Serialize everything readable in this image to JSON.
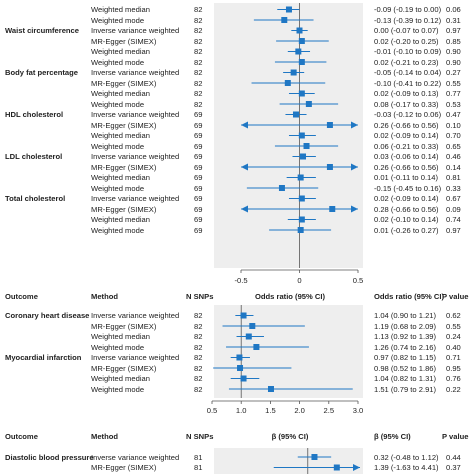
{
  "colors": {
    "accent": "#1f77c4",
    "shade": "#eeeeee",
    "axis": "#555555"
  },
  "panels": [
    {
      "axis": {
        "min": -0.5,
        "max": 0.5,
        "ref": 0,
        "ticks": [
          -0.5,
          0,
          0.5
        ],
        "tick_labels": [
          "-0.5",
          "0",
          "0.5"
        ]
      },
      "header": null,
      "groups": [
        {
          "outcome": "",
          "rows": [
            {
              "method": "Weighted median",
              "n": "82",
              "est": -0.09,
              "lo": -0.19,
              "hi": 0.0,
              "ci_text": "-0.09 (-0.19 to 0.00)",
              "p": "0.06"
            },
            {
              "method": "Weighted mode",
              "n": "82",
              "est": -0.13,
              "lo": -0.39,
              "hi": 0.12,
              "ci_text": "-0.13 (-0.39 to 0.12)",
              "p": "0.31"
            }
          ]
        },
        {
          "outcome": "Waist circumference",
          "rows": [
            {
              "method": "Inverse variance weighted",
              "n": "82",
              "est": 0.0,
              "lo": -0.07,
              "hi": 0.07,
              "ci_text": "0.00 (-0.07 to 0.07)",
              "p": "0.97"
            },
            {
              "method": "MR-Egger (SIMEX)",
              "n": "82",
              "est": 0.02,
              "lo": -0.2,
              "hi": 0.25,
              "ci_text": "0.02 (-0.20 to 0.25)",
              "p": "0.85"
            },
            {
              "method": "Weighted median",
              "n": "82",
              "est": -0.01,
              "lo": -0.1,
              "hi": 0.09,
              "ci_text": "-0.01 (-0.10 to 0.09)",
              "p": "0.90"
            },
            {
              "method": "Weighted mode",
              "n": "82",
              "est": 0.02,
              "lo": -0.21,
              "hi": 0.23,
              "ci_text": "0.02 (-0.21 to 0.23)",
              "p": "0.90"
            }
          ]
        },
        {
          "outcome": "Body fat percentage",
          "rows": [
            {
              "method": "Inverse variance weighted",
              "n": "82",
              "est": -0.05,
              "lo": -0.14,
              "hi": 0.04,
              "ci_text": "-0.05 (-0.14 to 0.04)",
              "p": "0.27"
            },
            {
              "method": "MR-Egger (SIMEX)",
              "n": "82",
              "est": -0.1,
              "lo": -0.41,
              "hi": 0.22,
              "ci_text": "-0.10 (-0.41 to 0.22)",
              "p": "0.55"
            },
            {
              "method": "Weighted median",
              "n": "82",
              "est": 0.02,
              "lo": -0.09,
              "hi": 0.13,
              "ci_text": "0.02 (-0.09 to 0.13)",
              "p": "0.77"
            },
            {
              "method": "Weighted mode",
              "n": "82",
              "est": 0.08,
              "lo": -0.17,
              "hi": 0.33,
              "ci_text": "0.08 (-0.17 to 0.33)",
              "p": "0.53"
            }
          ]
        },
        {
          "outcome": "HDL cholesterol",
          "rows": [
            {
              "method": "Inverse variance weighted",
              "n": "69",
              "est": -0.03,
              "lo": -0.12,
              "hi": 0.06,
              "ci_text": "-0.03 (-0.12 to 0.06)",
              "p": "0.47"
            },
            {
              "method": "MR-Egger (SIMEX)",
              "n": "69",
              "est": 0.26,
              "lo": -0.66,
              "hi": 0.56,
              "ci_text": "0.26 (-0.66 to 0.56)",
              "p": "0.10",
              "arrow_left": true,
              "arrow_right": true
            },
            {
              "method": "Weighted median",
              "n": "69",
              "est": 0.02,
              "lo": -0.09,
              "hi": 0.14,
              "ci_text": "0.02 (-0.09 to 0.14)",
              "p": "0.70"
            },
            {
              "method": "Weighted mode",
              "n": "69",
              "est": 0.06,
              "lo": -0.21,
              "hi": 0.33,
              "ci_text": "0.06 (-0.21 to 0.33)",
              "p": "0.65"
            }
          ]
        },
        {
          "outcome": "LDL cholesterol",
          "rows": [
            {
              "method": "Inverse variance weighted",
              "n": "69",
              "est": 0.03,
              "lo": -0.06,
              "hi": 0.14,
              "ci_text": "0.03 (-0.06 to 0.14)",
              "p": "0.46"
            },
            {
              "method": "MR-Egger (SIMEX)",
              "n": "69",
              "est": 0.26,
              "lo": -0.66,
              "hi": 0.56,
              "ci_text": "0.26 (-0.66 to 0.56)",
              "p": "0.14",
              "arrow_left": true,
              "arrow_right": true
            },
            {
              "method": "Weighted median",
              "n": "69",
              "est": 0.01,
              "lo": -0.11,
              "hi": 0.14,
              "ci_text": "0.01 (-0.11 to 0.14)",
              "p": "0.81"
            },
            {
              "method": "Weighted mode",
              "n": "69",
              "est": -0.15,
              "lo": -0.45,
              "hi": 0.16,
              "ci_text": "-0.15 (-0.45 to 0.16)",
              "p": "0.33"
            }
          ]
        },
        {
          "outcome": "Total cholesterol",
          "rows": [
            {
              "method": "Inverse variance weighted",
              "n": "69",
              "est": 0.02,
              "lo": -0.09,
              "hi": 0.14,
              "ci_text": "0.02 (-0.09 to 0.14)",
              "p": "0.67"
            },
            {
              "method": "MR-Egger (SIMEX)",
              "n": "69",
              "est": 0.28,
              "lo": -0.66,
              "hi": 0.56,
              "ci_text": "0.28 (-0.66 to 0.56)",
              "p": "0.09",
              "arrow_left": true,
              "arrow_right": true
            },
            {
              "method": "Weighted median",
              "n": "69",
              "est": 0.02,
              "lo": -0.1,
              "hi": 0.14,
              "ci_text": "0.02 (-0.10 to 0.14)",
              "p": "0.74"
            },
            {
              "method": "Weighted mode",
              "n": "69",
              "est": 0.01,
              "lo": -0.26,
              "hi": 0.27,
              "ci_text": "0.01 (-0.26 to 0.27)",
              "p": "0.97"
            }
          ]
        }
      ]
    },
    {
      "axis": {
        "min": 0.5,
        "max": 3.0,
        "ref": 1,
        "ticks": [
          0.5,
          1.0,
          1.5,
          2.0,
          2.5,
          3.0
        ],
        "tick_labels": [
          "0.5",
          "1.0",
          "1.5",
          "2.0",
          "2.5",
          "3.0"
        ]
      },
      "header": {
        "outcome": "Outcome",
        "method": "Method",
        "n": "N SNPs",
        "mid": "Odds ratio (95% CI)",
        "ci": "Odds ratio (95% CI)",
        "p": "P value"
      },
      "groups": [
        {
          "outcome": "Coronary heart disease",
          "rows": [
            {
              "method": "Inverse variance weighted",
              "n": "82",
              "est": 1.04,
              "lo": 0.9,
              "hi": 1.21,
              "ci_text": "1.04 (0.90 to 1.21)",
              "p": "0.62"
            },
            {
              "method": "MR-Egger (SIMEX)",
              "n": "82",
              "est": 1.19,
              "src_lo": 0.68,
              "lo": 0.68,
              "hi": 2.09,
              "ci_text": "1.19 (0.68 to 2.09)",
              "p": "0.55"
            },
            {
              "method": "Weighted median",
              "n": "82",
              "est": 1.13,
              "lo": 0.92,
              "hi": 1.39,
              "ci_text": "1.13 (0.92 to 1.39)",
              "p": "0.24"
            },
            {
              "method": "Weighted mode",
              "n": "82",
              "est": 1.26,
              "lo": 0.74,
              "hi": 2.16,
              "ci_text": "1.26 (0.74 to 2.16)",
              "p": "0.40"
            }
          ]
        },
        {
          "outcome": "Myocardial infarction",
          "rows": [
            {
              "method": "Inverse variance weighted",
              "n": "82",
              "est": 0.97,
              "lo": 0.82,
              "hi": 1.15,
              "ci_text": "0.97 (0.82 to 1.15)",
              "p": "0.71"
            },
            {
              "method": "MR-Egger (SIMEX)",
              "n": "82",
              "est": 0.98,
              "lo": 0.52,
              "hi": 1.86,
              "ci_text": "0.98 (0.52 to 1.86)",
              "p": "0.95"
            },
            {
              "method": "Weighted median",
              "n": "82",
              "est": 1.04,
              "lo": 0.82,
              "hi": 1.31,
              "ci_text": "1.04 (0.82 to 1.31)",
              "p": "0.76"
            },
            {
              "method": "Weighted mode",
              "n": "82",
              "est": 1.51,
              "lo": 0.79,
              "hi": 2.91,
              "ci_text": "1.51 (0.79 to 2.91)",
              "p": "0.22"
            }
          ]
        }
      ]
    },
    {
      "axis": null,
      "header": {
        "outcome": "Outcome",
        "method": "Method",
        "n": "N SNPs",
        "mid": "β (95% CI)",
        "ci": "β (95% CI)",
        "p": "P value"
      },
      "groups": [
        {
          "outcome": "Diastolic blood pressure",
          "rows": [
            {
              "method": "Inverse variance weighted",
              "n": "81",
              "est": 0.32,
              "lo": -0.48,
              "hi": 1.12,
              "ci_text": "0.32 (-0.48 to 1.12)",
              "p": "0.44"
            },
            {
              "method": "MR-Egger (SIMEX)",
              "n": "81",
              "est": 1.39,
              "lo": -1.63,
              "hi": 4.41,
              "ci_text": "1.39 (-1.63 to 4.41)",
              "p": "0.37",
              "arrow_right": true
            }
          ]
        }
      ]
    }
  ],
  "chart_data": [
    {
      "type": "forest",
      "axis_range": [
        -0.5,
        0.5
      ],
      "reference": 0,
      "series": [
        {
          "name": "Waist circumference",
          "methods": [
            "Inverse variance weighted",
            "MR-Egger (SIMEX)",
            "Weighted median",
            "Weighted mode"
          ],
          "values": [
            0.0,
            0.02,
            -0.01,
            0.02
          ]
        },
        {
          "name": "Body fat percentage",
          "methods": [
            "Inverse variance weighted",
            "MR-Egger (SIMEX)",
            "Weighted median",
            "Weighted mode"
          ],
          "values": [
            -0.05,
            -0.1,
            0.02,
            0.08
          ]
        },
        {
          "name": "HDL cholesterol",
          "methods": [
            "Inverse variance weighted",
            "MR-Egger (SIMEX)",
            "Weighted median",
            "Weighted mode"
          ],
          "values": [
            -0.03,
            0.26,
            0.02,
            0.06
          ]
        },
        {
          "name": "LDL cholesterol",
          "methods": [
            "Inverse variance weighted",
            "MR-Egger (SIMEX)",
            "Weighted median",
            "Weighted mode"
          ],
          "values": [
            0.03,
            0.26,
            0.01,
            -0.15
          ]
        },
        {
          "name": "Total cholesterol",
          "methods": [
            "Inverse variance weighted",
            "MR-Egger (SIMEX)",
            "Weighted median",
            "Weighted mode"
          ],
          "values": [
            0.02,
            0.28,
            0.02,
            0.01
          ]
        }
      ]
    },
    {
      "type": "forest",
      "axis_range": [
        0.5,
        3.0
      ],
      "reference": 1,
      "series": [
        {
          "name": "Coronary heart disease",
          "methods": [
            "Inverse variance weighted",
            "MR-Egger (SIMEX)",
            "Weighted median",
            "Weighted mode"
          ],
          "values": [
            1.04,
            1.19,
            1.13,
            1.26
          ]
        },
        {
          "name": "Myocardial infarction",
          "methods": [
            "Inverse variance weighted",
            "MR-Egger (SIMEX)",
            "Weighted median",
            "Weighted mode"
          ],
          "values": [
            0.97,
            0.98,
            1.04,
            1.51
          ]
        }
      ]
    },
    {
      "type": "forest",
      "series": [
        {
          "name": "Diastolic blood pressure",
          "methods": [
            "Inverse variance weighted",
            "MR-Egger (SIMEX)"
          ],
          "values": [
            0.32,
            1.39
          ]
        }
      ]
    }
  ]
}
